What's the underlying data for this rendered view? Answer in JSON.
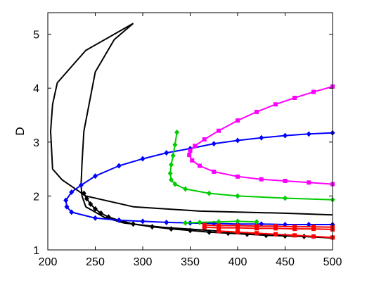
{
  "chart_data": {
    "type": "line",
    "title": "",
    "xlabel": "",
    "ylabel": "D",
    "xlim": [
      200,
      500
    ],
    "ylim": [
      1,
      5.4
    ],
    "xticks": [
      "200",
      "250",
      "300",
      "350",
      "400",
      "450",
      "500"
    ],
    "yticks": [
      "1",
      "2",
      "3",
      "4",
      "5"
    ],
    "grid": false,
    "series": [
      {
        "color": "#000000",
        "marker": "none",
        "x": [
          290,
          270,
          250,
          238,
          236,
          235,
          236,
          240,
          260,
          280,
          320,
          380,
          440,
          500
        ],
        "y": [
          5.2,
          4.9,
          4.3,
          3.2,
          2.6,
          2.2,
          2.0,
          1.8,
          1.6,
          1.5,
          1.42,
          1.35,
          1.28,
          1.22
        ]
      },
      {
        "color": "#000000",
        "marker": "none",
        "x": [
          290,
          240,
          230,
          210,
          205,
          203,
          205,
          215,
          240,
          290,
          360,
          450,
          500
        ],
        "y": [
          5.2,
          4.7,
          4.5,
          4.1,
          3.7,
          3.2,
          2.5,
          2.3,
          2.0,
          1.8,
          1.72,
          1.68,
          1.65
        ]
      },
      {
        "color": "#000000",
        "marker": "diamond",
        "x": [
          238,
          241,
          245,
          250,
          256,
          264,
          275,
          290,
          310,
          330,
          350,
          370,
          390,
          410,
          430,
          450,
          470,
          500
        ],
        "y": [
          2.05,
          1.95,
          1.85,
          1.76,
          1.68,
          1.61,
          1.55,
          1.48,
          1.43,
          1.39,
          1.36,
          1.33,
          1.31,
          1.29,
          1.27,
          1.26,
          1.25,
          1.23
        ]
      },
      {
        "color": "#0000ff",
        "marker": "diamond",
        "x": [
          500,
          475,
          450,
          425,
          400,
          375,
          350,
          325,
          300,
          275,
          250,
          235,
          225,
          219,
          220,
          225,
          250,
          275,
          300,
          325,
          350,
          375,
          400,
          425,
          450,
          475,
          500
        ],
        "y": [
          3.17,
          3.15,
          3.12,
          3.08,
          3.03,
          2.97,
          2.88,
          2.8,
          2.69,
          2.56,
          2.37,
          2.2,
          2.07,
          1.92,
          1.8,
          1.7,
          1.59,
          1.55,
          1.53,
          1.51,
          1.5,
          1.49,
          1.48,
          1.48,
          1.47,
          1.47,
          1.47
        ]
      },
      {
        "color": "#ff00ff",
        "marker": "square",
        "x": [
          500,
          480,
          460,
          440,
          420,
          400,
          380,
          365,
          355,
          350,
          349,
          352,
          360,
          375,
          400,
          425,
          450,
          475,
          500
        ],
        "y": [
          4.03,
          3.93,
          3.82,
          3.7,
          3.56,
          3.4,
          3.21,
          3.05,
          2.93,
          2.84,
          2.76,
          2.66,
          2.56,
          2.45,
          2.36,
          2.31,
          2.28,
          2.25,
          2.22
        ]
      },
      {
        "color": "#00cc00",
        "marker": "diamond",
        "x": [
          336,
          334,
          332,
          330,
          329,
          330,
          334,
          345,
          370,
          400,
          450,
          500
        ],
        "y": [
          3.18,
          2.95,
          2.75,
          2.58,
          2.42,
          2.3,
          2.22,
          2.13,
          2.05,
          2.0,
          1.96,
          1.93
        ]
      },
      {
        "color": "#00cc00",
        "marker": "diamond",
        "x": [
          345,
          360,
          380,
          400,
          420
        ],
        "y": [
          1.5,
          1.51,
          1.52,
          1.53,
          1.52
        ]
      },
      {
        "color": "#ff0000",
        "marker": "square",
        "x": [
          365,
          380,
          400,
          420,
          440,
          460,
          480,
          500
        ],
        "y": [
          1.42,
          1.41,
          1.41,
          1.4,
          1.4,
          1.39,
          1.39,
          1.38
        ]
      },
      {
        "color": "#ff0000",
        "marker": "square",
        "x": [
          365,
          380,
          400,
          420,
          440,
          460,
          480,
          500
        ],
        "y": [
          1.46,
          1.45,
          1.45,
          1.44,
          1.44,
          1.43,
          1.43,
          1.42
        ]
      },
      {
        "color": "#ff0000",
        "marker": "square",
        "x": [
          380,
          400,
          420,
          440,
          460,
          480,
          500
        ],
        "y": [
          1.35,
          1.33,
          1.31,
          1.29,
          1.27,
          1.25,
          1.23
        ]
      }
    ]
  }
}
